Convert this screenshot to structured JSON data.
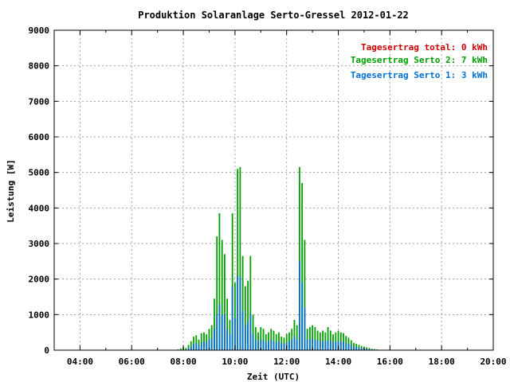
{
  "chart_data": {
    "type": "bar",
    "title": "Produktion Solaranlage Serto-Gressel 2012-01-22",
    "xlabel": "Zeit (UTC)",
    "ylabel": "Leistung [W]",
    "xlim": [
      3.0,
      20.0
    ],
    "ylim": [
      0,
      9000
    ],
    "grid": true,
    "legend_position": "top-right",
    "x_ticks": [
      "04:00",
      "06:00",
      "08:00",
      "10:00",
      "12:00",
      "14:00",
      "16:00",
      "18:00",
      "20:00"
    ],
    "y_ticks": [
      "0",
      "1000",
      "2000",
      "3000",
      "4000",
      "5000",
      "6000",
      "7000",
      "8000",
      "9000"
    ],
    "legend": [
      {
        "label": "Tagesertrag total: 0 kWh",
        "color": "#cc0000"
      },
      {
        "label": "Tagesertrag Serto 2: 7 kWh",
        "color": "#00a000"
      },
      {
        "label": "Tagesertrag Serto 1: 3 kWh",
        "color": "#0070d0"
      }
    ],
    "x": [
      7.8,
      7.9,
      8.0,
      8.1,
      8.2,
      8.3,
      8.4,
      8.5,
      8.6,
      8.7,
      8.8,
      8.9,
      9.0,
      9.1,
      9.2,
      9.3,
      9.4,
      9.5,
      9.6,
      9.7,
      9.8,
      9.9,
      10.0,
      10.1,
      10.2,
      10.3,
      10.4,
      10.5,
      10.6,
      10.7,
      10.8,
      10.9,
      11.0,
      11.1,
      11.2,
      11.3,
      11.4,
      11.5,
      11.6,
      11.7,
      11.8,
      11.9,
      12.0,
      12.1,
      12.2,
      12.3,
      12.4,
      12.5,
      12.6,
      12.7,
      12.8,
      12.9,
      13.0,
      13.1,
      13.2,
      13.3,
      13.4,
      13.5,
      13.6,
      13.7,
      13.8,
      13.9,
      14.0,
      14.1,
      14.2,
      14.3,
      14.4,
      14.5,
      14.6,
      14.7,
      14.8,
      14.9,
      15.0,
      15.1,
      15.2,
      15.3,
      15.4,
      15.5,
      15.6
    ],
    "series": [
      {
        "name": "Tagesertrag Serto 2: 7 kWh",
        "color": "#00a000",
        "values": [
          20,
          50,
          80,
          60,
          150,
          250,
          380,
          420,
          300,
          480,
          500,
          450,
          600,
          700,
          1450,
          3200,
          3850,
          3100,
          2700,
          1450,
          850,
          3850,
          1900,
          5100,
          5150,
          2650,
          1800,
          1950,
          2650,
          1000,
          650,
          500,
          650,
          600,
          450,
          500,
          600,
          550,
          450,
          500,
          380,
          350,
          450,
          500,
          600,
          850,
          700,
          5150,
          4700,
          3100,
          600,
          650,
          700,
          650,
          550,
          500,
          550,
          500,
          650,
          550,
          450,
          500,
          550,
          500,
          480,
          400,
          350,
          280,
          200,
          180,
          150,
          120,
          100,
          80,
          60,
          40,
          30,
          20,
          10
        ]
      },
      {
        "name": "Tagesertrag Serto 1: 3 kWh",
        "color": "#0070d0",
        "values": [
          0,
          0,
          0,
          0,
          50,
          100,
          180,
          200,
          150,
          220,
          250,
          220,
          300,
          350,
          600,
          1000,
          1300,
          1000,
          1000,
          600,
          450,
          1800,
          900,
          2100,
          2050,
          1100,
          700,
          800,
          1000,
          450,
          300,
          250,
          300,
          280,
          220,
          250,
          300,
          260,
          220,
          250,
          200,
          180,
          220,
          250,
          300,
          400,
          300,
          2500,
          1900,
          1200,
          300,
          300,
          320,
          300,
          280,
          250,
          260,
          250,
          300,
          260,
          220,
          250,
          260,
          250,
          240,
          200,
          180,
          150,
          100,
          90,
          80,
          60,
          50,
          40,
          30,
          20,
          15,
          10,
          5
        ]
      }
    ]
  }
}
